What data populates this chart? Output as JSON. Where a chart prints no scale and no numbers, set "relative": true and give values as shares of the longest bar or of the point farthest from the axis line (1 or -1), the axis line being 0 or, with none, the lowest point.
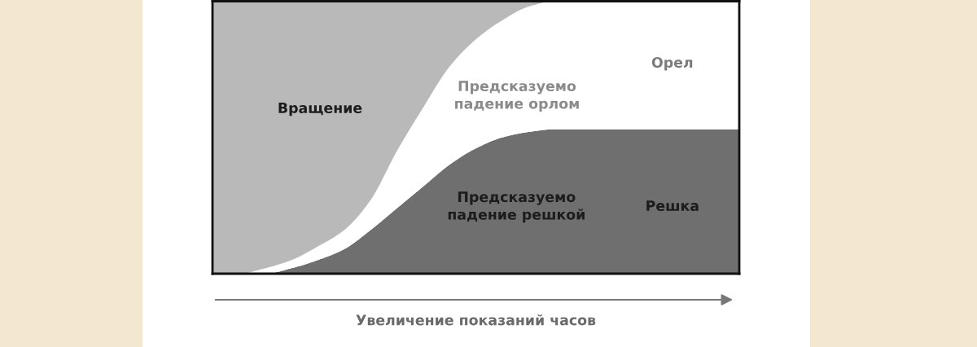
{
  "chart_data": {
    "type": "area",
    "stacked": true,
    "relative": true,
    "xlabel": "Увеличение показаний часов",
    "categories": [
      null,
      null,
      null,
      null,
      null,
      null,
      null,
      null,
      null,
      null,
      null,
      null,
      null,
      null,
      null,
      null,
      null,
      null,
      null,
      null,
      null
    ],
    "series": [
      {
        "name": "Решка",
        "color": "#6f6f6f",
        "values": [
          0,
          0,
          0,
          0.02,
          0.05,
          0.09,
          0.16,
          0.24,
          0.32,
          0.4,
          0.46,
          0.5,
          0.52,
          0.53,
          0.53,
          0.53,
          0.53,
          0.53,
          0.53,
          0.53,
          0.53
        ]
      },
      {
        "name": "Орел",
        "color": "#ffffff",
        "values": [
          null,
          0,
          0.02,
          0.03,
          0.05,
          0.07,
          0.11,
          0.21,
          0.29,
          0.36,
          0.4,
          0.43,
          0.46,
          0.47,
          0.47,
          0.47,
          0.47,
          0.47,
          0.47,
          0.47,
          0.47
        ]
      },
      {
        "name": "Вращение",
        "color": "#b9b9b9",
        "values": [
          1,
          1,
          0.98,
          0.95,
          0.9,
          0.84,
          0.73,
          0.55,
          0.39,
          0.24,
          0.14,
          0.07,
          0.02,
          0,
          0,
          0,
          0,
          0,
          0,
          0,
          0
        ]
      }
    ],
    "annotations": [
      "Предсказуемо\nпадение орлом",
      "Предсказуемо\nпадение решкой"
    ]
  }
}
